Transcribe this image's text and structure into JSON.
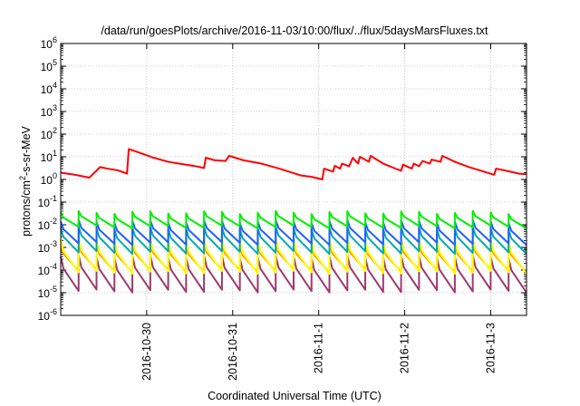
{
  "chart_data": {
    "type": "line",
    "title": "/data/run/goesPlots/archive/2016-11-03/10:00/flux/../flux/5daysMarsFluxes.txt",
    "xlabel": "Coordinated Universal Time (UTC)",
    "ylabel": "protons/cm²-s-sr-MeV",
    "yscale": "log",
    "ylim": [
      1e-06,
      1000000.0
    ],
    "xlim": [
      "2016-10-29T00:00",
      "2016-11-03T10:00"
    ],
    "x_ticks": [
      "2016-10-30",
      "2016-10-31",
      "2016-11-1",
      "2016-11-2",
      "2016-11-3"
    ],
    "y_ticks": [
      {
        "base": "10",
        "exp": "6"
      },
      {
        "base": "10",
        "exp": "5"
      },
      {
        "base": "10",
        "exp": "4"
      },
      {
        "base": "10",
        "exp": "3"
      },
      {
        "base": "10",
        "exp": "2"
      },
      {
        "base": "10",
        "exp": "1"
      },
      {
        "base": "10",
        "exp": "0"
      },
      {
        "base": "10",
        "exp": "-1"
      },
      {
        "base": "10",
        "exp": "-2"
      },
      {
        "base": "10",
        "exp": "-3"
      },
      {
        "base": "10",
        "exp": "-4"
      },
      {
        "base": "10",
        "exp": "-5"
      },
      {
        "base": "10",
        "exp": "-6"
      }
    ],
    "grid": true,
    "legend": "none",
    "series": [
      {
        "color": "#ff0000",
        "points": [
          [
            "2016-10-29T00:00",
            2.0
          ],
          [
            "2016-10-29T04:00",
            1.6
          ],
          [
            "2016-10-29T08:00",
            1.2
          ],
          [
            "2016-10-29T11:00",
            3.5
          ],
          [
            "2016-10-29T13:00",
            3.0
          ],
          [
            "2016-10-29T16:00",
            2.5
          ],
          [
            "2016-10-29T18:30",
            1.8
          ],
          [
            "2016-10-29T19:00",
            22.0
          ],
          [
            "2016-10-29T22:00",
            15.0
          ],
          [
            "2016-10-30T02:00",
            9.0
          ],
          [
            "2016-10-30T06:00",
            6.0
          ],
          [
            "2016-10-30T09:00",
            5.0
          ],
          [
            "2016-10-30T13:00",
            4.0
          ],
          [
            "2016-10-30T16:00",
            3.2
          ],
          [
            "2016-10-30T16:30",
            9.0
          ],
          [
            "2016-10-30T19:00",
            7.0
          ],
          [
            "2016-10-30T22:00",
            6.5
          ],
          [
            "2016-10-30T23:00",
            11.0
          ],
          [
            "2016-10-31T03:00",
            7.0
          ],
          [
            "2016-10-31T08:00",
            5.0
          ],
          [
            "2016-10-31T13:00",
            3.0
          ],
          [
            "2016-10-31T19:00",
            1.5
          ],
          [
            "2016-10-31T22:00",
            1.3
          ],
          [
            "2016-11-01T01:00",
            1.0
          ],
          [
            "2016-11-01T01:30",
            3.0
          ],
          [
            "2016-11-01T04:00",
            2.2
          ],
          [
            "2016-11-01T04:30",
            4.0
          ],
          [
            "2016-11-01T06:00",
            3.0
          ],
          [
            "2016-11-01T06:30",
            5.0
          ],
          [
            "2016-11-01T08:30",
            3.8
          ],
          [
            "2016-11-01T09:30",
            9.0
          ],
          [
            "2016-11-01T11:00",
            5.0
          ],
          [
            "2016-11-01T11:30",
            10.0
          ],
          [
            "2016-11-01T14:00",
            6.0
          ],
          [
            "2016-11-01T14:30",
            11.0
          ],
          [
            "2016-11-01T18:00",
            5.0
          ],
          [
            "2016-11-01T21:00",
            3.2
          ],
          [
            "2016-11-01T23:00",
            2.4
          ],
          [
            "2016-11-01T23:30",
            4.5
          ],
          [
            "2016-11-02T02:00",
            3.0
          ],
          [
            "2016-11-02T02:30",
            5.0
          ],
          [
            "2016-11-02T04:00",
            3.8
          ],
          [
            "2016-11-02T05:00",
            6.5
          ],
          [
            "2016-11-02T07:00",
            5.0
          ],
          [
            "2016-11-02T07:30",
            7.5
          ],
          [
            "2016-11-02T10:00",
            6.0
          ],
          [
            "2016-11-02T10:30",
            11.0
          ],
          [
            "2016-11-02T14:00",
            6.0
          ],
          [
            "2016-11-02T18:00",
            3.5
          ],
          [
            "2016-11-02T21:00",
            2.5
          ],
          [
            "2016-11-03T01:00",
            1.6
          ],
          [
            "2016-11-03T01:30",
            3.0
          ],
          [
            "2016-11-03T05:00",
            2.3
          ],
          [
            "2016-11-03T08:00",
            1.8
          ],
          [
            "2016-11-03T10:00",
            1.7
          ]
        ]
      },
      {
        "color": "#00ee00",
        "pattern": "sawtooth",
        "period_hours": 5,
        "low": 0.008,
        "high": 0.035,
        "decay": 0.003
      },
      {
        "color": "#1f5fff",
        "pattern": "sawtooth",
        "period_hours": 5,
        "low": 0.0015,
        "high": 0.014,
        "decay": 0.004
      },
      {
        "color": "#00aaaa",
        "pattern": "sawtooth",
        "period_hours": 5,
        "low": 0.0006,
        "high": 0.007,
        "decay": 0.004
      },
      {
        "color": "#ffff00",
        "pattern": "sawtooth",
        "period_hours": 5,
        "low": 8e-05,
        "high": 0.0022,
        "decay": 0.004
      },
      {
        "color": "#ff9000",
        "pattern": "sawtooth",
        "period_hours": 5,
        "low": 9e-05,
        "high": 0.0014,
        "decay": 0.004
      },
      {
        "color": "#9c3a6e",
        "pattern": "sawtooth",
        "period_hours": 5,
        "low": 1.2e-05,
        "high": 0.0004,
        "decay": 0.004
      }
    ]
  }
}
